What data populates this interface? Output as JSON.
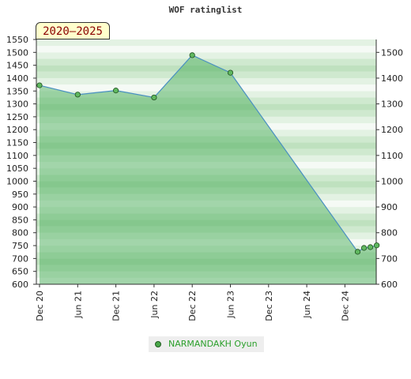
{
  "chart_data": {
    "type": "area",
    "title": "WOF ratinglist",
    "badge": "2020–2025",
    "x_ticks": [
      "Dec 20",
      "Jun 21",
      "Dec 21",
      "Jun 22",
      "Dec 22",
      "Jun 23",
      "Dec 23",
      "Jun 24",
      "Dec 24"
    ],
    "y_left_ticks": [
      600,
      650,
      700,
      750,
      800,
      850,
      900,
      950,
      1000,
      1050,
      1100,
      1150,
      1200,
      1250,
      1300,
      1350,
      1400,
      1450,
      1500,
      1550
    ],
    "y_right_ticks": [
      600,
      700,
      800,
      900,
      1000,
      1100,
      1200,
      1300,
      1400,
      1500
    ],
    "ylim": [
      600,
      1550
    ],
    "series": [
      {
        "name": "NARMANDAKH Oyun",
        "points": [
          {
            "x": "2020-12",
            "y": 1372
          },
          {
            "x": "2021-06",
            "y": 1336
          },
          {
            "x": "2021-12",
            "y": 1352
          },
          {
            "x": "2022-06",
            "y": 1325
          },
          {
            "x": "2022-12",
            "y": 1489
          },
          {
            "x": "2023-06",
            "y": 1421
          },
          {
            "x": "2025-02",
            "y": 726
          },
          {
            "x": "2025-03",
            "y": 741
          },
          {
            "x": "2025-04",
            "y": 744
          },
          {
            "x": "2025-05",
            "y": 751
          }
        ]
      }
    ],
    "grid": true,
    "legend_position": "bottom-center",
    "colors": {
      "fill": "#5cb85c",
      "line": "#4a90c2",
      "marker": "#4aa84a",
      "band_light": "#e8f5e8",
      "band_dark": "#b5dcb5"
    }
  }
}
